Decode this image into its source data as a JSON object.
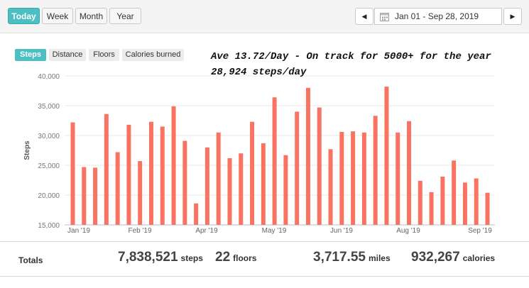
{
  "range_buttons": [
    {
      "label": "Today",
      "active": true
    },
    {
      "label": "Week",
      "active": false
    },
    {
      "label": "Month",
      "active": false
    },
    {
      "label": "Year",
      "active": false
    }
  ],
  "date_range": {
    "prev_icon": "◀",
    "calendar_icon": "calendar-icon",
    "label": "Jan 01 - Sep 28, 2019",
    "next_icon": "▶"
  },
  "metric_tabs": [
    {
      "label": "Steps",
      "active": true
    },
    {
      "label": "Distance",
      "active": false
    },
    {
      "label": "Floors",
      "active": false
    },
    {
      "label": "Calories burned",
      "active": false
    }
  ],
  "annotation": {
    "line1": "Ave 13.72/Day - On track for 5000+ for the year",
    "line2": "28,924 steps/day"
  },
  "colors": {
    "bar": "#f97362",
    "accent": "#4bbfc1"
  },
  "chart_data": {
    "type": "bar",
    "ylabel": "Steps",
    "ylim": [
      15000,
      40000
    ],
    "yticks": [
      "15,000",
      "20,000",
      "25,000",
      "30,000",
      "35,000",
      "40,000"
    ],
    "xtick_labels": [
      "Jan '19",
      "Feb '19",
      "Apr '19",
      "May '19",
      "Jun '19",
      "Aug '19",
      "Sep '19"
    ],
    "grid": true,
    "values": [
      32200,
      24700,
      24600,
      33600,
      27200,
      31800,
      25700,
      32300,
      31500,
      34900,
      29100,
      18600,
      28000,
      30500,
      26200,
      27000,
      32300,
      28700,
      36400,
      26700,
      34000,
      38000,
      34700,
      27700,
      30600,
      30700,
      30500,
      33300,
      38200,
      30500,
      32400,
      22400,
      20500,
      23100,
      25800,
      22100,
      22800,
      20400
    ]
  },
  "totals": {
    "label": "Totals",
    "steps_value": "7,838,521",
    "steps_unit": "steps",
    "floors_value": "22",
    "floors_unit": "floors",
    "miles_value": "3,717.55",
    "miles_unit": "miles",
    "calories_value": "932,267",
    "calories_unit": "calories"
  }
}
